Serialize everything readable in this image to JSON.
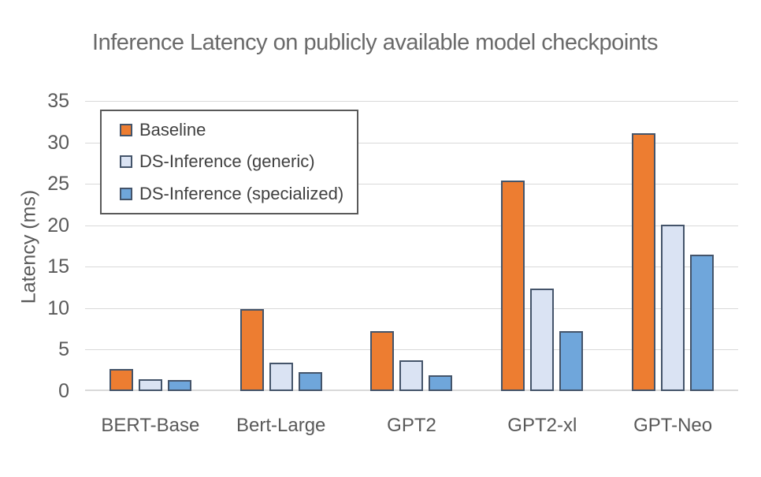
{
  "chart_data": {
    "type": "bar",
    "title": "Inference Latency on publicly available model checkpoints",
    "xlabel": "",
    "ylabel": "Latency (ms)",
    "ylim": [
      0,
      35
    ],
    "yticks": [
      0,
      5,
      10,
      15,
      20,
      25,
      30,
      35
    ],
    "grid": true,
    "legend_position": "top-left-inside",
    "categories": [
      "BERT-Base",
      "Bert-Large",
      "GPT2",
      "GPT2-xl",
      "GPT-Neo"
    ],
    "series": [
      {
        "name": "Baseline",
        "fill": "#ED7D31",
        "values": [
          2.7,
          9.9,
          7.2,
          25.4,
          31.1
        ]
      },
      {
        "name": "DS-Inference (generic)",
        "fill": "#DAE3F3",
        "values": [
          1.4,
          3.4,
          3.7,
          12.4,
          20.1
        ]
      },
      {
        "name": "DS-Inference (specialized)",
        "fill": "#6FA6DB",
        "values": [
          1.3,
          2.3,
          1.9,
          7.2,
          16.5
        ]
      }
    ],
    "colors": {
      "bar_border": "#44546A",
      "gridline": "#D9D9D9",
      "axis_text": "#595959",
      "title_text": "#6A6A6A",
      "legend_border": "#595959",
      "legend_text": "#404040"
    }
  }
}
